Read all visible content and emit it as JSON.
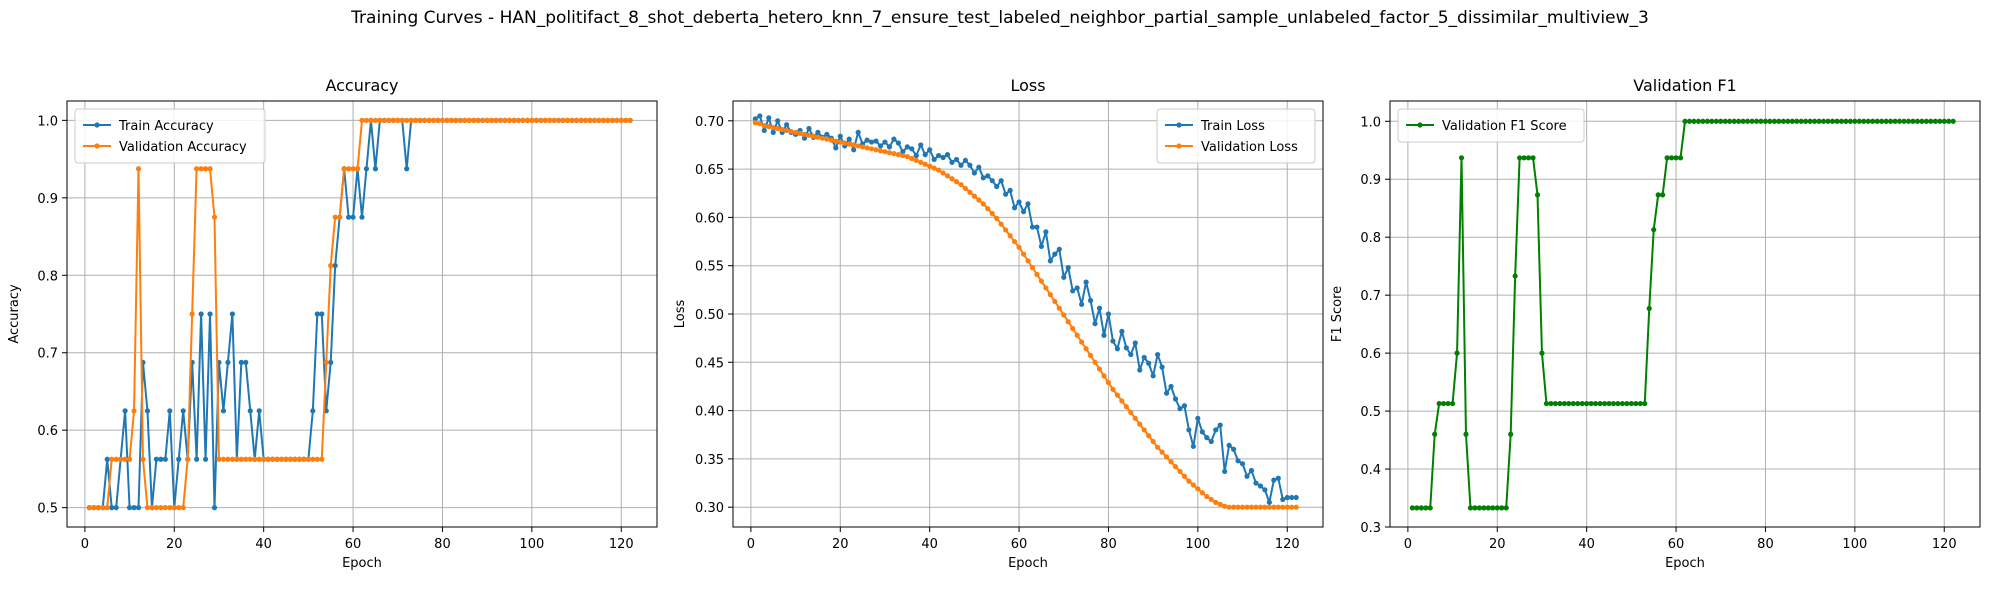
{
  "figure": {
    "title": "Training Curves - HAN_politifact_8_shot_deberta_hetero_knn_7_ensure_test_labeled_neighbor_partial_sample_unlabeled_factor_5_dissimilar_multiview_3"
  },
  "colors": {
    "train": "#1f77b4",
    "validation": "#ff7f0e",
    "f1": "#008000",
    "grid": "#b0b0b0"
  },
  "chart_data": [
    {
      "type": "line",
      "title": "Accuracy",
      "xlabel": "Epoch",
      "ylabel": "Accuracy",
      "xlim": [
        -4,
        128
      ],
      "ylim": [
        0.475,
        1.025
      ],
      "xticks": [
        0,
        20,
        40,
        60,
        80,
        100,
        120
      ],
      "yticks": [
        0.5,
        0.6,
        0.7,
        0.8,
        0.9,
        1.0
      ],
      "ytick_labels": [
        "0.5",
        "0.6",
        "0.7",
        "0.8",
        "0.9",
        "1.0"
      ],
      "grid": true,
      "legend_position": "upper-left",
      "series": [
        {
          "name": "Train Accuracy",
          "color": "#1f77b4",
          "values": [
            0.5,
            0.5,
            0.5,
            0.5,
            0.5625,
            0.5,
            0.5,
            0.5625,
            0.625,
            0.5,
            0.5,
            0.5,
            0.6875,
            0.625,
            0.5,
            0.5625,
            0.5625,
            0.5625,
            0.625,
            0.5,
            0.5625,
            0.625,
            0.5625,
            0.6875,
            0.5625,
            0.75,
            0.5625,
            0.75,
            0.5,
            0.6875,
            0.625,
            0.6875,
            0.75,
            0.5625,
            0.6875,
            0.6875,
            0.625,
            0.5625,
            0.625,
            0.5625,
            0.5625,
            0.5625,
            0.5625,
            0.5625,
            0.5625,
            0.5625,
            0.5625,
            0.5625,
            0.5625,
            0.5625,
            0.625,
            0.75,
            0.75,
            0.625,
            0.6875,
            0.8125,
            0.875,
            0.9375,
            0.875,
            0.875,
            0.9375,
            0.875,
            0.9375,
            1.0,
            0.9375,
            1.0,
            1.0,
            1.0,
            1.0,
            1.0,
            1.0,
            0.9375,
            1.0,
            1.0,
            1.0,
            1.0,
            1.0,
            1.0,
            1.0,
            1.0,
            1.0,
            1.0,
            1.0,
            1.0,
            1.0,
            1.0,
            1.0,
            1.0,
            1.0,
            1.0,
            1.0,
            1.0,
            1.0,
            1.0,
            1.0,
            1.0,
            1.0,
            1.0,
            1.0,
            1.0,
            1.0,
            1.0,
            1.0,
            1.0,
            1.0,
            1.0,
            1.0,
            1.0,
            1.0,
            1.0,
            1.0,
            1.0,
            1.0,
            1.0,
            1.0,
            1.0,
            1.0,
            1.0,
            1.0,
            1.0,
            1.0,
            1.0
          ]
        },
        {
          "name": "Validation Accuracy",
          "color": "#ff7f0e",
          "values": [
            0.5,
            0.5,
            0.5,
            0.5,
            0.5,
            0.5625,
            0.5625,
            0.5625,
            0.5625,
            0.5625,
            0.625,
            0.9375,
            0.5625,
            0.5,
            0.5,
            0.5,
            0.5,
            0.5,
            0.5,
            0.5,
            0.5,
            0.5,
            0.5625,
            0.75,
            0.9375,
            0.9375,
            0.9375,
            0.9375,
            0.875,
            0.5625,
            0.5625,
            0.5625,
            0.5625,
            0.5625,
            0.5625,
            0.5625,
            0.5625,
            0.5625,
            0.5625,
            0.5625,
            0.5625,
            0.5625,
            0.5625,
            0.5625,
            0.5625,
            0.5625,
            0.5625,
            0.5625,
            0.5625,
            0.5625,
            0.5625,
            0.5625,
            0.5625,
            0.6875,
            0.8125,
            0.875,
            0.875,
            0.9375,
            0.9375,
            0.9375,
            0.9375,
            1.0,
            1.0,
            1.0,
            1.0,
            1.0,
            1.0,
            1.0,
            1.0,
            1.0,
            1.0,
            1.0,
            1.0,
            1.0,
            1.0,
            1.0,
            1.0,
            1.0,
            1.0,
            1.0,
            1.0,
            1.0,
            1.0,
            1.0,
            1.0,
            1.0,
            1.0,
            1.0,
            1.0,
            1.0,
            1.0,
            1.0,
            1.0,
            1.0,
            1.0,
            1.0,
            1.0,
            1.0,
            1.0,
            1.0,
            1.0,
            1.0,
            1.0,
            1.0,
            1.0,
            1.0,
            1.0,
            1.0,
            1.0,
            1.0,
            1.0,
            1.0,
            1.0,
            1.0,
            1.0,
            1.0,
            1.0,
            1.0,
            1.0,
            1.0,
            1.0,
            1.0
          ]
        }
      ]
    },
    {
      "type": "line",
      "title": "Loss",
      "xlabel": "Epoch",
      "ylabel": "Loss",
      "xlim": [
        -4,
        128
      ],
      "ylim": [
        0.2795,
        0.7205
      ],
      "xticks": [
        0,
        20,
        40,
        60,
        80,
        100,
        120
      ],
      "yticks": [
        0.3,
        0.35,
        0.4,
        0.45,
        0.5,
        0.55,
        0.6,
        0.65,
        0.7
      ],
      "ytick_labels": [
        "0.30",
        "0.35",
        "0.40",
        "0.45",
        "0.50",
        "0.55",
        "0.60",
        "0.65",
        "0.70"
      ],
      "grid": true,
      "legend_position": "upper-right",
      "series": [
        {
          "name": "Train Loss",
          "color": "#1f77b4",
          "values": [
            0.702,
            0.705,
            0.69,
            0.703,
            0.688,
            0.7,
            0.688,
            0.696,
            0.688,
            0.686,
            0.69,
            0.682,
            0.692,
            0.683,
            0.688,
            0.683,
            0.686,
            0.682,
            0.672,
            0.684,
            0.674,
            0.681,
            0.67,
            0.688,
            0.676,
            0.68,
            0.678,
            0.679,
            0.674,
            0.678,
            0.673,
            0.681,
            0.677,
            0.668,
            0.673,
            0.671,
            0.664,
            0.675,
            0.665,
            0.67,
            0.66,
            0.664,
            0.662,
            0.665,
            0.657,
            0.66,
            0.654,
            0.659,
            0.654,
            0.646,
            0.652,
            0.641,
            0.643,
            0.638,
            0.632,
            0.638,
            0.624,
            0.628,
            0.61,
            0.616,
            0.606,
            0.614,
            0.59,
            0.59,
            0.57,
            0.585,
            0.555,
            0.562,
            0.567,
            0.538,
            0.548,
            0.524,
            0.527,
            0.51,
            0.533,
            0.514,
            0.49,
            0.506,
            0.478,
            0.5,
            0.472,
            0.464,
            0.482,
            0.465,
            0.458,
            0.47,
            0.442,
            0.455,
            0.449,
            0.436,
            0.458,
            0.445,
            0.418,
            0.425,
            0.412,
            0.402,
            0.405,
            0.38,
            0.363,
            0.392,
            0.378,
            0.372,
            0.368,
            0.38,
            0.385,
            0.337,
            0.364,
            0.36,
            0.348,
            0.345,
            0.332,
            0.338,
            0.325,
            0.322,
            0.318,
            0.305,
            0.328,
            0.33,
            0.308,
            0.31,
            0.31,
            0.31
          ]
        },
        {
          "name": "Validation Loss",
          "color": "#ff7f0e",
          "values": [
            0.698,
            0.697,
            0.695,
            0.694,
            0.693,
            0.692,
            0.691,
            0.69,
            0.689,
            0.688,
            0.687,
            0.686,
            0.685,
            0.684,
            0.683,
            0.682,
            0.681,
            0.68,
            0.679,
            0.678,
            0.677,
            0.676,
            0.675,
            0.674,
            0.673,
            0.672,
            0.671,
            0.67,
            0.669,
            0.668,
            0.667,
            0.666,
            0.665,
            0.664,
            0.663,
            0.661,
            0.659,
            0.657,
            0.655,
            0.653,
            0.651,
            0.649,
            0.646,
            0.643,
            0.64,
            0.637,
            0.634,
            0.63,
            0.626,
            0.622,
            0.618,
            0.614,
            0.609,
            0.604,
            0.599,
            0.593,
            0.587,
            0.581,
            0.575,
            0.569,
            0.562,
            0.555,
            0.548,
            0.541,
            0.534,
            0.527,
            0.52,
            0.513,
            0.506,
            0.499,
            0.492,
            0.485,
            0.478,
            0.471,
            0.464,
            0.457,
            0.45,
            0.443,
            0.436,
            0.429,
            0.422,
            0.416,
            0.41,
            0.404,
            0.398,
            0.392,
            0.386,
            0.38,
            0.374,
            0.368,
            0.362,
            0.357,
            0.352,
            0.347,
            0.342,
            0.337,
            0.332,
            0.327,
            0.323,
            0.319,
            0.315,
            0.311,
            0.308,
            0.305,
            0.303,
            0.301,
            0.3,
            0.3,
            0.3,
            0.3,
            0.3,
            0.3,
            0.3,
            0.3,
            0.3,
            0.3,
            0.3,
            0.3,
            0.3,
            0.3,
            0.3,
            0.3
          ]
        }
      ]
    },
    {
      "type": "line",
      "title": "Validation F1",
      "xlabel": "Epoch",
      "ylabel": "F1 Score",
      "xlim": [
        -4,
        128
      ],
      "ylim": [
        0.3,
        1.035
      ],
      "xticks": [
        0,
        20,
        40,
        60,
        80,
        100,
        120
      ],
      "yticks": [
        0.3,
        0.4,
        0.5,
        0.6,
        0.7,
        0.8,
        0.9,
        1.0
      ],
      "ytick_labels": [
        "0.3",
        "0.4",
        "0.5",
        "0.6",
        "0.7",
        "0.8",
        "0.9",
        "1.0"
      ],
      "grid": true,
      "legend_position": "upper-left",
      "series": [
        {
          "name": "Validation F1 Score",
          "color": "#008000",
          "values": [
            0.333,
            0.333,
            0.333,
            0.333,
            0.333,
            0.46,
            0.513,
            0.513,
            0.513,
            0.513,
            0.6,
            0.937,
            0.46,
            0.333,
            0.333,
            0.333,
            0.333,
            0.333,
            0.333,
            0.333,
            0.333,
            0.333,
            0.46,
            0.733,
            0.937,
            0.937,
            0.937,
            0.937,
            0.873,
            0.6,
            0.513,
            0.513,
            0.513,
            0.513,
            0.513,
            0.513,
            0.513,
            0.513,
            0.513,
            0.513,
            0.513,
            0.513,
            0.513,
            0.513,
            0.513,
            0.513,
            0.513,
            0.513,
            0.513,
            0.513,
            0.513,
            0.513,
            0.513,
            0.677,
            0.813,
            0.873,
            0.873,
            0.937,
            0.937,
            0.937,
            0.937,
            1.0,
            1.0,
            1.0,
            1.0,
            1.0,
            1.0,
            1.0,
            1.0,
            1.0,
            1.0,
            1.0,
            1.0,
            1.0,
            1.0,
            1.0,
            1.0,
            1.0,
            1.0,
            1.0,
            1.0,
            1.0,
            1.0,
            1.0,
            1.0,
            1.0,
            1.0,
            1.0,
            1.0,
            1.0,
            1.0,
            1.0,
            1.0,
            1.0,
            1.0,
            1.0,
            1.0,
            1.0,
            1.0,
            1.0,
            1.0,
            1.0,
            1.0,
            1.0,
            1.0,
            1.0,
            1.0,
            1.0,
            1.0,
            1.0,
            1.0,
            1.0,
            1.0,
            1.0,
            1.0,
            1.0,
            1.0,
            1.0,
            1.0,
            1.0,
            1.0,
            1.0
          ]
        }
      ]
    }
  ]
}
